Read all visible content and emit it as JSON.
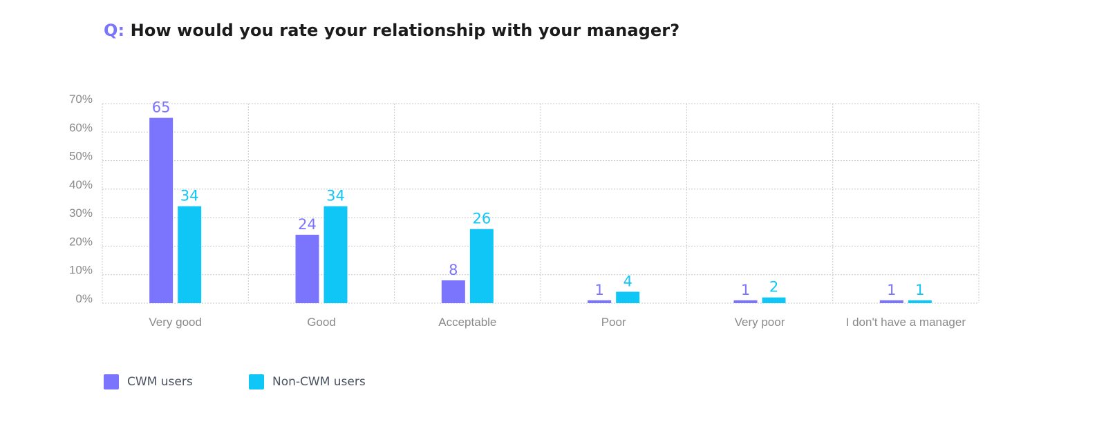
{
  "title": {
    "prefix": "Q:",
    "text": "How would you rate your relationship with your manager?"
  },
  "legend": {
    "series_a": "CWM users",
    "series_b": "Non-CWM users"
  },
  "colors": {
    "series_a": "#7b74fd",
    "series_b": "#10c6f6",
    "grid": "#c8c8c8",
    "axis_text": "#8a8a8a"
  },
  "chart_data": {
    "type": "bar",
    "categories": [
      "Very good",
      "Good",
      "Acceptable",
      "Poor",
      "Very poor",
      "I don't have a manager"
    ],
    "series": [
      {
        "name": "CWM users",
        "values": [
          65,
          24,
          8,
          1,
          1,
          1
        ]
      },
      {
        "name": "Non-CWM users",
        "values": [
          34,
          34,
          26,
          4,
          2,
          1
        ]
      }
    ],
    "yticks": [
      "0%",
      "10%",
      "20%",
      "30%",
      "40%",
      "50%",
      "60%",
      "70%"
    ],
    "ylim": [
      0,
      70
    ],
    "grid": true,
    "legend_position": "bottom-left"
  }
}
